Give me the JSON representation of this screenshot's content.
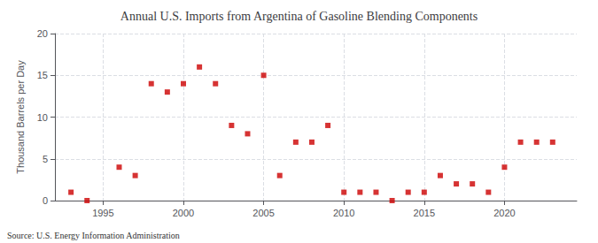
{
  "chart_data": {
    "type": "scatter",
    "title": "Annual U.S. Imports from Argentina of Gasoline Blending Components",
    "ylabel": "Thousand Barrels per Day",
    "annotations": [
      "Source: U.S. Energy Information Administration"
    ],
    "x": [
      1993,
      1994,
      1996,
      1997,
      1998,
      1999,
      2000,
      2001,
      2002,
      2003,
      2004,
      2005,
      2006,
      2007,
      2008,
      2009,
      2010,
      2011,
      2012,
      2013,
      2014,
      2015,
      2016,
      2017,
      2018,
      2019,
      2020,
      2021,
      2022,
      2023
    ],
    "values": [
      1,
      0,
      4,
      3,
      14,
      13,
      14,
      16,
      14,
      9,
      8,
      15,
      3,
      7,
      7,
      9,
      1,
      1,
      1,
      0,
      1,
      1,
      3,
      2,
      2,
      1,
      4,
      7,
      7,
      7
    ],
    "color": "#cc0000",
    "marker": "square",
    "xlim": [
      1992,
      2024.5
    ],
    "xticks": [
      1995,
      2000,
      2005,
      2010,
      2015,
      2020
    ],
    "ylim": [
      0,
      20
    ],
    "yticks": [
      0,
      5,
      10,
      15,
      20
    ],
    "grid": true
  }
}
